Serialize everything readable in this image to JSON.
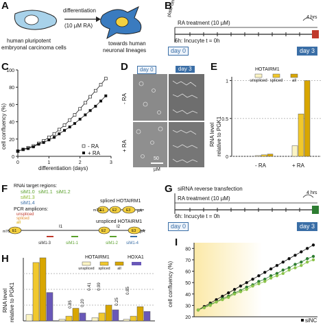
{
  "panels": {
    "A": {
      "label": "A",
      "left_caption_1": "human pluripotent",
      "left_caption_2": "embryonal carcinoma cells",
      "arrow_top": "differentiation",
      "arrow_bottom": "(10 µM RA)",
      "right_caption_1": "towards human",
      "right_caption_2": "neuronal lineages"
    },
    "B": {
      "label": "B",
      "plate_cells": "plate cells",
      "ra_treatment": "RA treatment (10 µM)",
      "incucyte": "6h: Incucyte t = 0h",
      "hrs": "4 hrs",
      "day0": "day 0",
      "day3": "day 3"
    },
    "C": {
      "label": "C",
      "ylabel": "cell confluency (%)",
      "xlabel": "differentiation (days)",
      "legend_minus": "- RA",
      "legend_plus": "+ RA",
      "xticks": [
        "0",
        "1",
        "2",
        "3"
      ],
      "yticks": [
        "0",
        "20",
        "40",
        "60",
        "80",
        "100"
      ]
    },
    "D": {
      "label": "D",
      "day0": "day 0",
      "day3": "day 3",
      "row_minus": "- RA",
      "row_plus": "+ RA",
      "scalebar_1": "50",
      "scalebar_2": "µM"
    },
    "E": {
      "label": "E",
      "legend_title": "HOTAIRM1",
      "legend_items": [
        "unspliced",
        "spliced",
        "all"
      ],
      "ylabel_1": "RNA level",
      "ylabel_2": "relative to PGK1",
      "yticks": [
        "0",
        "0.5",
        "1"
      ],
      "group_minus": "- RA",
      "group_plus": "+ RA"
    },
    "F": {
      "label": "F",
      "rnai_title": "RNAi target regions:",
      "rnai_line1_a": "siM1.0",
      "rnai_line1_b": "siM1.1",
      "rnai_line1_c": "siM1.2",
      "rnai_line2": "siM1.3",
      "rnai_line3": "siM1.4",
      "pcr_title": "PCR amplicons:",
      "pcr_items": [
        "unspliced",
        "spliced",
        "all"
      ],
      "spliced_name": "spliced HOTAIRM1",
      "unspliced_name": "unspliced HOTAIRM1",
      "cap": "m7G",
      "pa": "pA",
      "e1": "E1",
      "e2": "E2",
      "e3": "E3",
      "i1": "I1",
      "i2": "I2",
      "sim13": "siM1-3",
      "sim11": "siM1-1",
      "sim12": "siM1-2",
      "sim14": "siM1-4"
    },
    "G": {
      "label": "G",
      "transfection": "siRNA reverse transfection",
      "ra_treatment": "RA treatment (10 µM)",
      "incucyte": "6h: Incucyte t = 0h",
      "hrs": "4 hrs",
      "day0": "day 0",
      "day3": "day 3"
    },
    "H": {
      "label": "H",
      "legend_group1": "HOTAIRM1",
      "legend_group2": "HOXA1",
      "legend_items": [
        "unspliced",
        "spliced",
        "all"
      ],
      "ylabel_1": "RNA level",
      "ylabel_2": "relative to PGK1",
      "value_labels": [
        "0.85",
        "0.20",
        "0.41",
        "0.99",
        "0.25",
        "0.85"
      ]
    },
    "I": {
      "label": "I",
      "ylabel": "cell confluency (%)",
      "yticks": [
        "20",
        "30",
        "40",
        "50",
        "60",
        "70",
        "80"
      ],
      "legend": "siNC"
    }
  },
  "colors": {
    "unspliced": "#fbf4c4",
    "spliced": "#f1c82c",
    "all": "#d8a600",
    "hoxa1": "#6958b8",
    "green": "#5aa02c",
    "day3_blue": "#3a6ea6",
    "red": "#c0392b",
    "exon": "#f4d03f"
  },
  "chart_data": [
    {
      "panel": "C",
      "type": "line",
      "xlabel": "differentiation (days)",
      "ylabel": "cell confluency (%)",
      "xlim": [
        0,
        3
      ],
      "ylim": [
        0,
        100
      ],
      "series": [
        {
          "name": "- RA",
          "x": [
            0,
            0.17,
            0.33,
            0.5,
            0.67,
            0.83,
            1.0,
            1.17,
            1.33,
            1.5,
            1.67,
            1.83,
            2.0,
            2.17,
            2.33,
            2.5,
            2.67,
            2.83
          ],
          "y": [
            6,
            8,
            10,
            12,
            15,
            18,
            22,
            26,
            31,
            36,
            42,
            48,
            55,
            62,
            69,
            76,
            83,
            90
          ]
        },
        {
          "name": "+ RA",
          "x": [
            0,
            0.17,
            0.33,
            0.5,
            0.67,
            0.83,
            1.0,
            1.17,
            1.33,
            1.5,
            1.67,
            1.83,
            2.0,
            2.17,
            2.33,
            2.5,
            2.67,
            2.83
          ],
          "y": [
            6,
            8,
            9,
            11,
            14,
            16,
            19,
            22,
            26,
            30,
            34,
            38,
            43,
            48,
            53,
            58,
            64,
            70
          ]
        }
      ]
    },
    {
      "panel": "E",
      "type": "bar",
      "categories": [
        "- RA",
        "+ RA"
      ],
      "ylabel": "RNA level relative to PGK1",
      "ylim": [
        0,
        1.05
      ],
      "series": [
        {
          "name": "unspliced",
          "values": [
            0.01,
            0.14
          ]
        },
        {
          "name": "spliced",
          "values": [
            0.02,
            0.56
          ]
        },
        {
          "name": "all",
          "values": [
            0.03,
            1.0
          ]
        }
      ]
    },
    {
      "panel": "H",
      "type": "bar",
      "ylabel": "RNA level relative to PGK1",
      "ylim": [
        0,
        0.4
      ],
      "groups": 4,
      "series": [
        {
          "name": "unspliced",
          "values": [
            0.04,
            0.01,
            0.02,
            0.01
          ]
        },
        {
          "name": "spliced",
          "values": [
            0.37,
            0.03,
            0.05,
            0.03
          ]
        },
        {
          "name": "all",
          "values": [
            0.4,
            0.08,
            0.1,
            0.09
          ]
        },
        {
          "name": "HOXA1",
          "values": [
            0.18,
            0.05,
            0.07,
            0.06
          ]
        }
      ],
      "value_labels": [
        "0.85",
        "0.20",
        "0.41",
        "0.99",
        "0.25",
        "0.85"
      ]
    },
    {
      "panel": "I",
      "type": "line",
      "ylabel": "cell confluency (%)",
      "ylim": [
        20,
        85
      ],
      "series": [
        {
          "name": "siNC",
          "y": [
            26,
            29,
            32,
            35,
            38,
            41,
            44,
            47,
            50,
            53,
            56,
            59,
            62,
            65,
            68,
            71,
            74,
            77,
            80,
            83
          ]
        },
        {
          "name": "",
          "y": [
            26,
            28,
            31,
            33,
            36,
            38,
            41,
            43,
            46,
            48,
            51,
            53,
            56,
            58,
            61,
            63,
            66,
            68,
            71,
            73
          ]
        },
        {
          "name": "",
          "y": [
            26,
            28,
            30,
            33,
            35,
            37,
            40,
            42,
            44,
            47,
            49,
            51,
            54,
            56,
            58,
            61,
            63,
            65,
            68,
            70
          ]
        }
      ]
    }
  ]
}
